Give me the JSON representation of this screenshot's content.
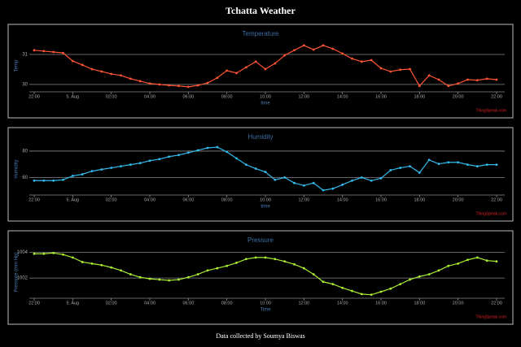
{
  "title": "Tchatta Weather",
  "footer": "Data collected by Soumya Biswas",
  "chart_data": [
    {
      "type": "line",
      "title": "Temperature",
      "ylabel": "Temp",
      "xlabel": "time",
      "credit": "ThingSpeak.com",
      "color": "#ff5533",
      "x": [
        0,
        0.5,
        1,
        1.5,
        2,
        2.5,
        3,
        3.5,
        4,
        4.5,
        5,
        5.5,
        6,
        6.5,
        7,
        7.5,
        8,
        8.5,
        9,
        9.5,
        10,
        10.5,
        11,
        11.5,
        12,
        12.5,
        13,
        13.5,
        14,
        14.5,
        15,
        15.5,
        16,
        16.5,
        17,
        17.5,
        18,
        18.5,
        19,
        19.5,
        20,
        20.5,
        21,
        21.5,
        22,
        22.5,
        23,
        23.5,
        24
      ],
      "values": [
        31.14,
        31.11,
        31.08,
        31.05,
        30.78,
        30.65,
        30.51,
        30.43,
        30.35,
        30.3,
        30.19,
        30.11,
        30.03,
        30.0,
        29.97,
        29.95,
        29.92,
        29.97,
        30.05,
        30.22,
        30.46,
        30.38,
        30.57,
        30.76,
        30.51,
        30.7,
        30.97,
        31.14,
        31.3,
        31.16,
        31.3,
        31.19,
        31.03,
        30.86,
        30.76,
        30.81,
        30.54,
        30.43,
        30.49,
        30.51,
        29.95,
        30.3,
        30.16,
        29.95,
        30.03,
        30.16,
        30.14,
        30.19,
        30.16
      ],
      "xlim": [
        0,
        24
      ],
      "ylim": [
        29.78,
        31.46
      ],
      "yticks": [
        30,
        31
      ],
      "xticks": [
        {
          "value": 0,
          "label": "22:00"
        },
        {
          "value": 2,
          "label": "5. Aug"
        },
        {
          "value": 4,
          "label": "02:00"
        },
        {
          "value": 6,
          "label": "04:00"
        },
        {
          "value": 8,
          "label": "06:00"
        },
        {
          "value": 10,
          "label": "08:00"
        },
        {
          "value": 12,
          "label": "10:00"
        },
        {
          "value": 14,
          "label": "12:00"
        },
        {
          "value": 16,
          "label": "14:00"
        },
        {
          "value": 18,
          "label": "16:00"
        },
        {
          "value": 20,
          "label": "18:00"
        },
        {
          "value": 22,
          "label": "20:00"
        },
        {
          "value": 24,
          "label": "22:00"
        }
      ],
      "grid": true
    },
    {
      "type": "line",
      "title": "Humidity",
      "ylabel": "Humidity",
      "xlabel": "time",
      "credit": "ThingSpeak.com",
      "color": "#33bbee",
      "x": [
        0,
        0.5,
        1,
        1.5,
        2,
        2.5,
        3,
        3.5,
        4,
        4.5,
        5,
        5.5,
        6,
        6.5,
        7,
        7.5,
        8,
        8.5,
        9,
        9.5,
        10,
        10.5,
        11,
        11.5,
        12,
        12.5,
        13,
        13.5,
        14,
        14.5,
        15,
        15.5,
        16,
        16.5,
        17,
        17.5,
        18,
        18.5,
        19,
        19.5,
        20,
        20.5,
        21,
        21.5,
        22,
        22.5,
        23,
        23.5,
        24
      ],
      "values": [
        57.6,
        57.6,
        57.6,
        58.2,
        61.2,
        62.4,
        64.8,
        66.1,
        67.3,
        68.5,
        69.7,
        70.9,
        72.7,
        73.9,
        75.8,
        77.0,
        78.8,
        80.6,
        82.4,
        83.0,
        79.4,
        74.5,
        69.7,
        66.7,
        64.2,
        58.2,
        60,
        55.8,
        53.9,
        55.8,
        50.3,
        51.5,
        54.5,
        57.6,
        60,
        57.6,
        59.4,
        65.5,
        67.3,
        68.5,
        63.6,
        73.3,
        70.3,
        71.5,
        71.5,
        69.7,
        68.5,
        69.7,
        69.7
      ],
      "xlim": [
        0,
        24
      ],
      "ylim": [
        47.3,
        85.5
      ],
      "yticks": [
        60,
        80
      ],
      "xticks": [
        {
          "value": 0,
          "label": "22:00"
        },
        {
          "value": 2,
          "label": "5. Aug"
        },
        {
          "value": 4,
          "label": "02:00"
        },
        {
          "value": 6,
          "label": "04:00"
        },
        {
          "value": 8,
          "label": "06:00"
        },
        {
          "value": 10,
          "label": "08:00"
        },
        {
          "value": 12,
          "label": "10:00"
        },
        {
          "value": 14,
          "label": "12:00"
        },
        {
          "value": 16,
          "label": "14:00"
        },
        {
          "value": 18,
          "label": "16:00"
        },
        {
          "value": 20,
          "label": "18:00"
        },
        {
          "value": 22,
          "label": "20:00"
        },
        {
          "value": 24,
          "label": "22:00"
        }
      ],
      "grid": true
    },
    {
      "type": "line",
      "title": "Pressure",
      "ylabel": "Pressure (mm Hg)",
      "xlabel": "Time",
      "credit": "ThingSpeak.com",
      "color": "#aaee33",
      "x": [
        0,
        0.5,
        1,
        1.5,
        2,
        2.5,
        3,
        3.5,
        4,
        4.5,
        5,
        5.5,
        6,
        6.5,
        7,
        7.5,
        8,
        8.5,
        9,
        9.5,
        10,
        10.5,
        11,
        11.5,
        12,
        12.5,
        13,
        13.5,
        14,
        14.5,
        15,
        15.5,
        16,
        16.5,
        17,
        17.5,
        18,
        18.5,
        19,
        19.5,
        20,
        20.5,
        21,
        21.5,
        22,
        22.5,
        23,
        23.5,
        24
      ],
      "values": [
        1003.88,
        1003.88,
        1003.94,
        1003.82,
        1003.59,
        1003.24,
        1003.12,
        1003.0,
        1002.82,
        1002.59,
        1002.29,
        1002.06,
        1001.94,
        1001.88,
        1001.82,
        1001.88,
        1002.06,
        1002.29,
        1002.59,
        1002.76,
        1002.94,
        1003.18,
        1003.47,
        1003.59,
        1003.59,
        1003.47,
        1003.29,
        1003.06,
        1002.76,
        1002.29,
        1001.71,
        1001.53,
        1001.24,
        1001.0,
        1000.76,
        1000.71,
        1000.94,
        1001.18,
        1001.53,
        1001.88,
        1002.12,
        1002.29,
        1002.59,
        1002.94,
        1003.12,
        1003.41,
        1003.59,
        1003.35,
        1003.29
      ],
      "xlim": [
        0,
        24
      ],
      "ylim": [
        1000.5,
        1004.4
      ],
      "yticks": [
        1002,
        1004
      ],
      "xticks": [
        {
          "value": 0,
          "label": "22:00"
        },
        {
          "value": 2,
          "label": "5. Aug"
        },
        {
          "value": 4,
          "label": "02:00"
        },
        {
          "value": 6,
          "label": "04:00"
        },
        {
          "value": 8,
          "label": "06:00"
        },
        {
          "value": 10,
          "label": "08:00"
        },
        {
          "value": 12,
          "label": "10:00"
        },
        {
          "value": 14,
          "label": "12:00"
        },
        {
          "value": 16,
          "label": "14:00"
        },
        {
          "value": 18,
          "label": "16:00"
        },
        {
          "value": 20,
          "label": "18:00"
        },
        {
          "value": 22,
          "label": "20:00"
        },
        {
          "value": 24,
          "label": "22:00"
        }
      ],
      "grid": true
    }
  ]
}
